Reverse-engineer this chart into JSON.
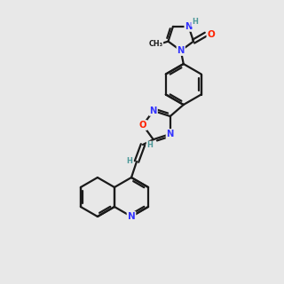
{
  "bg": "#e8e8e8",
  "bond_color": "#1a1a1a",
  "bond_width": 1.6,
  "N_color": "#3333ff",
  "O_color": "#ff2200",
  "H_color": "#4d9999",
  "C_color": "#1a1a1a"
}
